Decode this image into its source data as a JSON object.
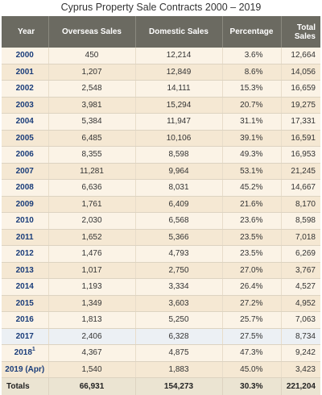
{
  "title": "Cyprus Property Sale Contracts 2000 – 2019",
  "headers": {
    "year": "Year",
    "overseas": "Overseas Sales",
    "domestic": "Domestic Sales",
    "percentage": "Percentage",
    "total_line1": "Total",
    "total_line2": "Sales"
  },
  "rows": [
    {
      "year": "2000",
      "sup": "",
      "overseas": "450",
      "domestic": "12,214",
      "percentage": "3.6%",
      "total": "12,664"
    },
    {
      "year": "2001",
      "sup": "",
      "overseas": "1,207",
      "domestic": "12,849",
      "percentage": "8.6%",
      "total": "14,056"
    },
    {
      "year": "2002",
      "sup": "",
      "overseas": "2,548",
      "domestic": "14,111",
      "percentage": "15.3%",
      "total": "16,659"
    },
    {
      "year": "2003",
      "sup": "",
      "overseas": "3,981",
      "domestic": "15,294",
      "percentage": "20.7%",
      "total": "19,275"
    },
    {
      "year": "2004",
      "sup": "",
      "overseas": "5,384",
      "domestic": "11,947",
      "percentage": "31.1%",
      "total": "17,331"
    },
    {
      "year": "2005",
      "sup": "",
      "overseas": "6,485",
      "domestic": "10,106",
      "percentage": "39.1%",
      "total": "16,591"
    },
    {
      "year": "2006",
      "sup": "",
      "overseas": "8,355",
      "domestic": "8,598",
      "percentage": "49.3%",
      "total": "16,953"
    },
    {
      "year": "2007",
      "sup": "",
      "overseas": "11,281",
      "domestic": "9,964",
      "percentage": "53.1%",
      "total": "21,245"
    },
    {
      "year": "2008",
      "sup": "",
      "overseas": "6,636",
      "domestic": "8,031",
      "percentage": "45.2%",
      "total": "14,667"
    },
    {
      "year": "2009",
      "sup": "",
      "overseas": "1,761",
      "domestic": "6,409",
      "percentage": "21.6%",
      "total": "8,170"
    },
    {
      "year": "2010",
      "sup": "",
      "overseas": "2,030",
      "domestic": "6,568",
      "percentage": "23.6%",
      "total": "8,598"
    },
    {
      "year": "2011",
      "sup": "",
      "overseas": "1,652",
      "domestic": "5,366",
      "percentage": "23.5%",
      "total": "7,018"
    },
    {
      "year": "2012",
      "sup": "",
      "overseas": "1,476",
      "domestic": "4,793",
      "percentage": "23.5%",
      "total": "6,269"
    },
    {
      "year": "2013",
      "sup": "",
      "overseas": "1,017",
      "domestic": "2,750",
      "percentage": "27.0%",
      "total": "3,767"
    },
    {
      "year": "2014",
      "sup": "",
      "overseas": "1,193",
      "domestic": "3,334",
      "percentage": "26.4%",
      "total": "4,527"
    },
    {
      "year": "2015",
      "sup": "",
      "overseas": "1,349",
      "domestic": "3,603",
      "percentage": "27.2%",
      "total": "4,952"
    },
    {
      "year": "2016",
      "sup": "",
      "overseas": "1,813",
      "domestic": "5,250",
      "percentage": "25.7%",
      "total": "7,063"
    },
    {
      "year": "2017",
      "sup": "",
      "overseas": "2,406",
      "domestic": "6,328",
      "percentage": "27.5%",
      "total": "8,734"
    },
    {
      "year": "2018",
      "sup": "1",
      "overseas": "4,367",
      "domestic": "4,875",
      "percentage": "47.3%",
      "total": "9,242"
    },
    {
      "year": "2019 (Apr)",
      "sup": "",
      "overseas": "1,540",
      "domestic": "1,883",
      "percentage": "45.0%",
      "total": "3,423"
    }
  ],
  "totals": {
    "label": "Totals",
    "overseas": "66,931",
    "domestic": "154,273",
    "percentage": "30.3%",
    "total": "221,204"
  }
}
